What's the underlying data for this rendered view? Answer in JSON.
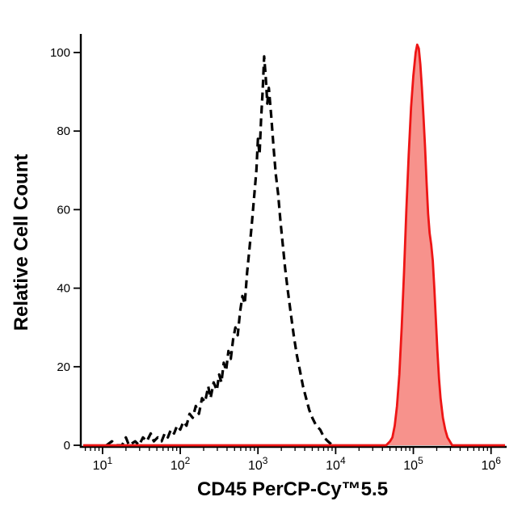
{
  "figure": {
    "background": "#ffffff"
  },
  "chart_data": {
    "type": "area",
    "subtype": "flow-cytometry-histogram",
    "title": "",
    "xlabel": "CD45 PerCP-Cy™5.5",
    "ylabel": "Relative Cell Count",
    "x_scale": "log10",
    "x_range_log10": [
      0.72,
      6.18
    ],
    "x_ticks": [
      1,
      2,
      3,
      4,
      5,
      6
    ],
    "x_tick_labels": [
      "10¹",
      "10²",
      "10³",
      "10⁴",
      "10⁵",
      "10⁶"
    ],
    "ylim": [
      0,
      100
    ],
    "y_ticks": [
      0,
      20,
      40,
      60,
      80,
      100
    ],
    "grid": false,
    "legend": "none",
    "axis_color": "#000000",
    "series": [
      {
        "id": "dashed-black-outline",
        "style": "dashed",
        "color": "#000000",
        "stroke_width": 3.2,
        "dash": "10 6",
        "fill_color": "none",
        "fill_opacity": 0,
        "peak_log10x": 3.08,
        "peak_y": 99,
        "points": [
          [
            1.05,
            0
          ],
          [
            1.12,
            1
          ],
          [
            1.18,
            0
          ],
          [
            1.25,
            0
          ],
          [
            1.3,
            2
          ],
          [
            1.34,
            0
          ],
          [
            1.42,
            1
          ],
          [
            1.47,
            0
          ],
          [
            1.52,
            2
          ],
          [
            1.57,
            1
          ],
          [
            1.62,
            3
          ],
          [
            1.66,
            1
          ],
          [
            1.71,
            2
          ],
          [
            1.76,
            1
          ],
          [
            1.8,
            3
          ],
          [
            1.84,
            2
          ],
          [
            1.88,
            4
          ],
          [
            1.92,
            3
          ],
          [
            1.96,
            5
          ],
          [
            2.0,
            4
          ],
          [
            2.04,
            6
          ],
          [
            2.08,
            5
          ],
          [
            2.12,
            8
          ],
          [
            2.16,
            7
          ],
          [
            2.2,
            10
          ],
          [
            2.24,
            8
          ],
          [
            2.28,
            12
          ],
          [
            2.32,
            11
          ],
          [
            2.36,
            15
          ],
          [
            2.39,
            12
          ],
          [
            2.43,
            16
          ],
          [
            2.47,
            14
          ],
          [
            2.5,
            18
          ],
          [
            2.53,
            16
          ],
          [
            2.56,
            21
          ],
          [
            2.59,
            19
          ],
          [
            2.62,
            24
          ],
          [
            2.65,
            22
          ],
          [
            2.68,
            27
          ],
          [
            2.71,
            30
          ],
          [
            2.74,
            28
          ],
          [
            2.77,
            34
          ],
          [
            2.8,
            38
          ],
          [
            2.83,
            36
          ],
          [
            2.86,
            44
          ],
          [
            2.89,
            50
          ],
          [
            2.92,
            56
          ],
          [
            2.95,
            63
          ],
          [
            2.98,
            70
          ],
          [
            3.0,
            78
          ],
          [
            3.02,
            74
          ],
          [
            3.04,
            83
          ],
          [
            3.06,
            90
          ],
          [
            3.08,
            99
          ],
          [
            3.1,
            94
          ],
          [
            3.12,
            87
          ],
          [
            3.14,
            91
          ],
          [
            3.17,
            84
          ],
          [
            3.2,
            76
          ],
          [
            3.23,
            69
          ],
          [
            3.26,
            64
          ],
          [
            3.29,
            57
          ],
          [
            3.32,
            51
          ],
          [
            3.35,
            45
          ],
          [
            3.38,
            40
          ],
          [
            3.42,
            34
          ],
          [
            3.46,
            28
          ],
          [
            3.5,
            23
          ],
          [
            3.54,
            19
          ],
          [
            3.58,
            15
          ],
          [
            3.62,
            12
          ],
          [
            3.66,
            9
          ],
          [
            3.7,
            7
          ],
          [
            3.75,
            5
          ],
          [
            3.8,
            4
          ],
          [
            3.85,
            2
          ],
          [
            3.9,
            1
          ],
          [
            3.96,
            0
          ],
          [
            4.0,
            0
          ]
        ]
      },
      {
        "id": "red-filled",
        "style": "solid",
        "color": "#ee1515",
        "stroke_width": 2.8,
        "dash": "",
        "fill_color": "#f6867f",
        "fill_opacity": 0.9,
        "peak_log10x": 5.05,
        "peak_y": 102,
        "points": [
          [
            0.75,
            0
          ],
          [
            4.55,
            0
          ],
          [
            4.65,
            0
          ],
          [
            4.7,
            1
          ],
          [
            4.73,
            2
          ],
          [
            4.76,
            5
          ],
          [
            4.79,
            10
          ],
          [
            4.82,
            18
          ],
          [
            4.85,
            30
          ],
          [
            4.88,
            44
          ],
          [
            4.91,
            60
          ],
          [
            4.94,
            74
          ],
          [
            4.97,
            86
          ],
          [
            5.0,
            94
          ],
          [
            5.03,
            100
          ],
          [
            5.05,
            102
          ],
          [
            5.07,
            101
          ],
          [
            5.09,
            97
          ],
          [
            5.11,
            91
          ],
          [
            5.13,
            84
          ],
          [
            5.15,
            76
          ],
          [
            5.17,
            67
          ],
          [
            5.19,
            59
          ],
          [
            5.21,
            54
          ],
          [
            5.23,
            51
          ],
          [
            5.25,
            47
          ],
          [
            5.27,
            40
          ],
          [
            5.29,
            32
          ],
          [
            5.31,
            24
          ],
          [
            5.33,
            17
          ],
          [
            5.35,
            12
          ],
          [
            5.38,
            7
          ],
          [
            5.41,
            4
          ],
          [
            5.44,
            2
          ],
          [
            5.47,
            1
          ],
          [
            5.5,
            0
          ],
          [
            6.18,
            0
          ]
        ]
      }
    ]
  }
}
